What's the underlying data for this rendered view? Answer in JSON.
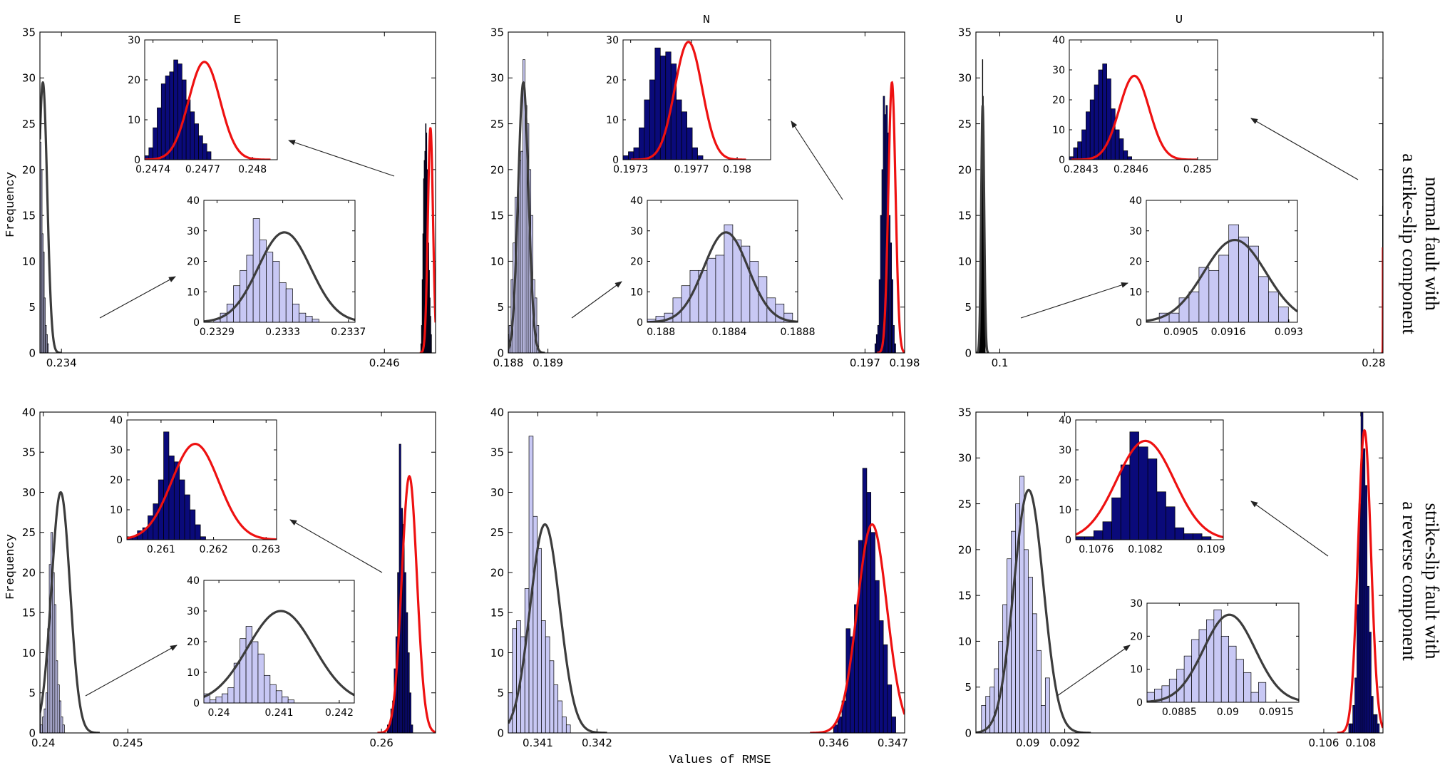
{
  "global": {
    "ylabel": "Frequency",
    "xlabel": "Values of RMSE",
    "row_labels": [
      [
        "normal fault with",
        "a strike-slip component"
      ],
      [
        "strike-slip fault with",
        "a reverse component"
      ]
    ]
  },
  "colors": {
    "light_bar": "#c8c8f4",
    "dark_bar": "#0a0a7a",
    "red_fit": "#ee1111",
    "gray_fit": "#3c3c3c",
    "axis": "#000000",
    "arrow": "#222222"
  },
  "chart_data": [
    {
      "type": "histogram",
      "title": "E",
      "xlim": [
        0.2332,
        0.2479
      ],
      "ylim": [
        0,
        35
      ],
      "yticks": [
        0,
        5,
        10,
        15,
        20,
        25,
        30,
        35
      ],
      "xticks": [
        {
          "v": 0.234,
          "label": "0.234"
        },
        {
          "v": 0.246,
          "label": "0.246"
        }
      ],
      "show_ylabel": true,
      "series": [
        {
          "name": "light",
          "style": "light",
          "fit": "gray",
          "start": 0.23288,
          "width": 4e-05,
          "values": [
            1,
            3,
            6,
            12,
            17,
            22,
            34,
            27,
            23,
            20,
            13,
            11,
            6,
            3,
            2,
            1
          ]
        },
        {
          "name": "dark",
          "style": "dark",
          "fit": "red",
          "start": 0.24735,
          "width": 2.5e-05,
          "values": [
            1,
            3,
            8,
            13,
            19,
            21,
            22,
            25,
            24,
            20,
            15,
            12,
            9,
            6,
            4,
            2
          ]
        }
      ],
      "fits": [
        {
          "style": "gray",
          "mu": 0.23331,
          "sigma": 0.00016,
          "peak": 29.5
        },
        {
          "style": "red",
          "mu": 0.24771,
          "sigma": 9.5e-05,
          "peak": 24.5
        }
      ],
      "insets": [
        {
          "series": 1,
          "fit": 1,
          "xlim": [
            0.24735,
            0.24815
          ],
          "ylim": [
            0,
            30
          ],
          "yticks": [
            0,
            10,
            20,
            30
          ],
          "xticks": [
            {
              "v": 0.2474,
              "label": "0.2474"
            },
            {
              "v": 0.2477,
              "label": "0.2477"
            },
            {
              "v": 0.248,
              "label": "0.248"
            }
          ]
        },
        {
          "series": 0,
          "fit": 0,
          "xlim": [
            0.23282,
            0.23374
          ],
          "ylim": [
            0,
            40
          ],
          "yticks": [
            0,
            10,
            20,
            30,
            40
          ],
          "xticks": [
            {
              "v": 0.2329,
              "label": "0.2329"
            },
            {
              "v": 0.2333,
              "label": "0.2333"
            },
            {
              "v": 0.2337,
              "label": "0.2337"
            }
          ]
        }
      ]
    },
    {
      "type": "histogram",
      "title": "N",
      "xlim": [
        0.188,
        0.198
      ],
      "ylim": [
        0,
        35
      ],
      "yticks": [
        0,
        5,
        10,
        15,
        20,
        25,
        30,
        35
      ],
      "xticks": [
        {
          "v": 0.188,
          "label": "0.188"
        },
        {
          "v": 0.189,
          "label": "0.189"
        },
        {
          "v": 0.197,
          "label": "0.197"
        },
        {
          "v": 0.198,
          "label": "0.198"
        }
      ],
      "show_ylabel": false,
      "series": [
        {
          "name": "light",
          "style": "light",
          "fit": "gray",
          "start": 0.18792,
          "width": 5e-05,
          "values": [
            1,
            2,
            3,
            8,
            12,
            17,
            17,
            21,
            22,
            32,
            27,
            25,
            20,
            15,
            8,
            6,
            3
          ]
        },
        {
          "name": "dark",
          "style": "dark",
          "fit": "red",
          "start": 0.19725,
          "width": 3.5e-05,
          "values": [
            1,
            2,
            3,
            8,
            15,
            20,
            28,
            26,
            27,
            24,
            15,
            12,
            8,
            3,
            1
          ]
        }
      ],
      "fits": [
        {
          "style": "gray",
          "mu": 0.18838,
          "sigma": 0.00013,
          "peak": 29.5
        },
        {
          "style": "red",
          "mu": 0.19768,
          "sigma": 9e-05,
          "peak": 29.5
        }
      ],
      "insets": [
        {
          "series": 1,
          "fit": 1,
          "xlim": [
            0.19725,
            0.19822
          ],
          "ylim": [
            0,
            30
          ],
          "yticks": [
            0,
            10,
            20,
            30
          ],
          "xticks": [
            {
              "v": 0.1973,
              "label": "0.1973"
            },
            {
              "v": 0.1977,
              "label": "0.1977"
            },
            {
              "v": 0.198,
              "label": "0.198"
            }
          ]
        },
        {
          "series": 0,
          "fit": 0,
          "xlim": [
            0.18792,
            0.1888
          ],
          "ylim": [
            0,
            40
          ],
          "yticks": [
            0,
            10,
            20,
            30,
            40
          ],
          "xticks": [
            {
              "v": 0.188,
              "label": "0.188"
            },
            {
              "v": 0.1884,
              "label": "0.1884"
            },
            {
              "v": 0.1888,
              "label": "0.1888"
            }
          ]
        }
      ]
    },
    {
      "type": "histogram",
      "title": "U",
      "xlim": [
        0.0885,
        0.2845
      ],
      "ylim": [
        0,
        35
      ],
      "yticks": [
        0,
        5,
        10,
        15,
        20,
        25,
        30,
        35
      ],
      "xticks": [
        {
          "v": 0.1,
          "label": "0.1"
        },
        {
          "v": 0.28,
          "label": "0.28"
        }
      ],
      "show_ylabel": false,
      "series": [
        {
          "name": "light",
          "style": "light",
          "fit": "gray",
          "start": 0.09,
          "width": 0.00023,
          "values": [
            3,
            3,
            8,
            10,
            18,
            17,
            22,
            32,
            28,
            25,
            15,
            10,
            5
          ]
        },
        {
          "name": "dark",
          "style": "dark",
          "fit": "red",
          "start": 0.28423,
          "width": 2.5e-05,
          "values": [
            1,
            4,
            6,
            10,
            16,
            20,
            25,
            30,
            32,
            27,
            17,
            10,
            7,
            3,
            1
          ]
        }
      ],
      "fits": [
        {
          "style": "gray",
          "mu": 0.09175,
          "sigma": 0.00072,
          "peak": 27
        },
        {
          "style": "red",
          "mu": 0.28462,
          "sigma": 9e-05,
          "peak": 28
        }
      ],
      "insets": [
        {
          "series": 1,
          "fit": 1,
          "xlim": [
            0.28423,
            0.28512
          ],
          "ylim": [
            0,
            40
          ],
          "yticks": [
            0,
            10,
            20,
            30,
            40
          ],
          "xticks": [
            {
              "v": 0.2843,
              "label": "0.2843"
            },
            {
              "v": 0.2846,
              "label": "0.2846"
            },
            {
              "v": 0.285,
              "label": "0.285"
            }
          ]
        },
        {
          "series": 0,
          "fit": 0,
          "xlim": [
            0.0897,
            0.0932
          ],
          "ylim": [
            0,
            40
          ],
          "yticks": [
            0,
            10,
            20,
            30,
            40
          ],
          "xticks": [
            {
              "v": 0.0905,
              "label": "0.0905"
            },
            {
              "v": 0.0916,
              "label": "0.0916"
            },
            {
              "v": 0.093,
              "label": "0.093"
            }
          ]
        }
      ]
    },
    {
      "type": "histogram",
      "title": "",
      "xlim": [
        0.2398,
        0.2632
      ],
      "ylim": [
        0,
        40
      ],
      "yticks": [
        0,
        5,
        10,
        15,
        20,
        25,
        30,
        35,
        40
      ],
      "xticks": [
        {
          "v": 0.24,
          "label": "0.24"
        },
        {
          "v": 0.245,
          "label": "0.245"
        },
        {
          "v": 0.26,
          "label": "0.26"
        }
      ],
      "show_ylabel": true,
      "series": [
        {
          "name": "light",
          "style": "light",
          "fit": "gray",
          "start": 0.23975,
          "width": 0.0001,
          "values": [
            3,
            1,
            2,
            3,
            5,
            13,
            21,
            25,
            20,
            16,
            9,
            6,
            4,
            2,
            1
          ]
        },
        {
          "name": "dark",
          "style": "dark",
          "fit": "red",
          "start": 0.26035,
          "width": 0.0001,
          "values": [
            1,
            1,
            3,
            4,
            8,
            12,
            20,
            36,
            28,
            26,
            20,
            15,
            10,
            5,
            1
          ]
        }
      ],
      "fits": [
        {
          "style": "gray",
          "mu": 0.24103,
          "sigma": 0.00055,
          "peak": 30
        },
        {
          "style": "red",
          "mu": 0.26165,
          "sigma": 0.00045,
          "peak": 32
        }
      ],
      "insets": [
        {
          "series": 1,
          "fit": 1,
          "xlim": [
            0.26035,
            0.2632
          ],
          "ylim": [
            0,
            40
          ],
          "yticks": [
            0,
            10,
            20,
            30,
            40
          ],
          "xticks": [
            {
              "v": 0.261,
              "label": "0.261"
            },
            {
              "v": 0.262,
              "label": "0.262"
            },
            {
              "v": 0.263,
              "label": "0.263"
            }
          ]
        },
        {
          "series": 0,
          "fit": 0,
          "xlim": [
            0.23975,
            0.24225
          ],
          "ylim": [
            0,
            40
          ],
          "yticks": [
            0,
            10,
            20,
            30,
            40
          ],
          "xticks": [
            {
              "v": 0.24,
              "label": "0.24"
            },
            {
              "v": 0.241,
              "label": "0.241"
            },
            {
              "v": 0.242,
              "label": "0.242"
            }
          ]
        }
      ]
    },
    {
      "type": "histogram",
      "title": "",
      "xlim": [
        0.3405,
        0.3472
      ],
      "ylim": [
        0,
        40
      ],
      "yticks": [
        0,
        5,
        10,
        15,
        20,
        25,
        30,
        35,
        40
      ],
      "xticks": [
        {
          "v": 0.341,
          "label": "0.341"
        },
        {
          "v": 0.342,
          "label": "0.342"
        },
        {
          "v": 0.346,
          "label": "0.346"
        },
        {
          "v": 0.347,
          "label": "0.347"
        }
      ],
      "show_ylabel": false,
      "series": [
        {
          "name": "light",
          "style": "light",
          "fit": "gray",
          "start": 0.3405,
          "width": 7e-05,
          "values": [
            5,
            13,
            14,
            12,
            18,
            37,
            27,
            23,
            14,
            12,
            9,
            6,
            4,
            2,
            1
          ]
        },
        {
          "name": "dark",
          "style": "dark",
          "fit": "red",
          "start": 0.346,
          "width": 7e-05,
          "values": [
            1,
            2,
            4,
            13,
            12,
            16,
            24,
            33,
            30,
            25,
            19,
            14,
            11,
            6,
            2
          ]
        }
      ],
      "fits": [
        {
          "style": "gray",
          "mu": 0.34112,
          "sigma": 0.00025,
          "peak": 26
        },
        {
          "style": "red",
          "mu": 0.34665,
          "sigma": 0.00025,
          "peak": 26
        }
      ],
      "insets": []
    },
    {
      "type": "histogram",
      "title": "",
      "xlim": [
        0.0872,
        0.1092
      ],
      "ylim": [
        0,
        35
      ],
      "yticks": [
        0,
        5,
        10,
        15,
        20,
        25,
        30,
        35
      ],
      "xticks": [
        {
          "v": 0.09,
          "label": "0.09"
        },
        {
          "v": 0.092,
          "label": "0.092"
        },
        {
          "v": 0.106,
          "label": "0.106"
        },
        {
          "v": 0.108,
          "label": "0.108"
        }
      ],
      "show_ylabel": false,
      "series": [
        {
          "name": "light",
          "style": "light",
          "fit": "gray",
          "start": 0.0875,
          "width": 0.00023,
          "values": [
            3,
            4,
            5,
            7,
            10,
            14,
            19,
            22,
            25,
            28,
            20,
            17,
            13,
            9,
            3,
            6
          ]
        },
        {
          "name": "dark",
          "style": "dark",
          "fit": "red",
          "start": 0.10735,
          "width": 0.00011,
          "values": [
            1,
            1,
            3,
            6,
            14,
            25,
            36,
            31,
            27,
            16,
            11,
            4,
            2,
            2,
            1
          ]
        }
      ],
      "fits": [
        {
          "style": "gray",
          "mu": 0.09005,
          "sigma": 0.0008,
          "peak": 26.5
        },
        {
          "style": "red",
          "mu": 0.1082,
          "sigma": 0.00035,
          "peak": 33
        }
      ],
      "insets": [
        {
          "series": 1,
          "fit": 1,
          "xlim": [
            0.10735,
            0.10915
          ],
          "ylim": [
            0,
            40
          ],
          "yticks": [
            0,
            10,
            20,
            30,
            40
          ],
          "xticks": [
            {
              "v": 0.1076,
              "label": "0.1076"
            },
            {
              "v": 0.1082,
              "label": "0.1082"
            },
            {
              "v": 0.109,
              "label": "0.109"
            }
          ]
        },
        {
          "series": 0,
          "fit": 0,
          "xlim": [
            0.0875,
            0.0922
          ],
          "ylim": [
            0,
            30
          ],
          "yticks": [
            0,
            10,
            20,
            30
          ],
          "xticks": [
            {
              "v": 0.0885,
              "label": "0.0885"
            },
            {
              "v": 0.09,
              "label": "0.09"
            },
            {
              "v": 0.0915,
              "label": "0.0915"
            }
          ]
        }
      ]
    }
  ]
}
